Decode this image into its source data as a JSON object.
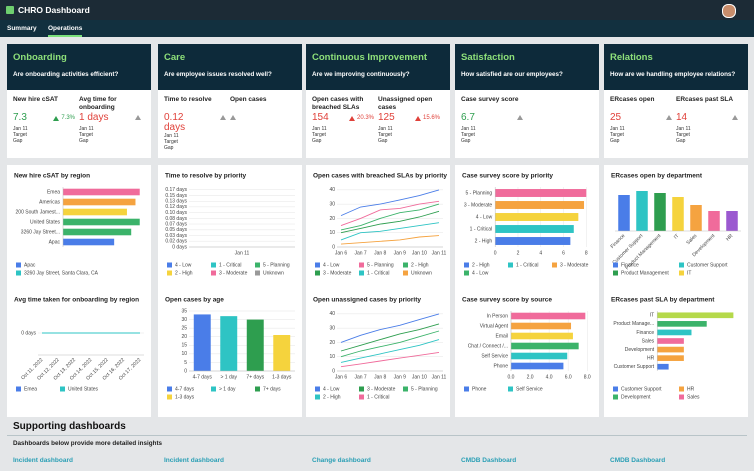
{
  "header": {
    "title": "CHRO Dashboard"
  },
  "tabs": [
    "Summary",
    "Operations"
  ],
  "sections": [
    {
      "title": "Onboarding",
      "question": "Are onboarding activities efficient?",
      "kpis": [
        {
          "label": "New hire cSAT",
          "value": "7.3",
          "color": "#2e9e4f",
          "change": "7.3%",
          "date": "Jan 11",
          "target": "Target",
          "gap": "Gap"
        },
        {
          "label": "Avg time for onboarding",
          "value": "1 days",
          "color": "#e0413a",
          "date": "Jan 11",
          "target": "Target",
          "gap": "Gap"
        }
      ],
      "charts": [
        {
          "type": "bar",
          "orientation": "horizontal",
          "title": "New hire cSAT by region",
          "categories": [
            "Emea",
            "Americas",
            "200 South Jamest...",
            "United States",
            "3260 Jay Street...",
            "Apac"
          ],
          "values": [
            9,
            8.5,
            7.5,
            9,
            8,
            6
          ],
          "xlim": [
            0,
            9.5
          ],
          "colors": [
            "#f06b9b",
            "#f5a340",
            "#f5d33d",
            "#3bb36a",
            "#3bb36a",
            "#4a7de8"
          ],
          "legend": [
            {
              "name": "Apac",
              "color": "#4a7de8"
            },
            {
              "name": "3260 Jay Street, Santa Clara, CA",
              "color": "#2ec4c4"
            }
          ]
        },
        {
          "type": "line",
          "title": "Avg time taken for onboarding by region",
          "categories": [
            "Oct 11, 2022",
            "Oct 12, 2022",
            "Oct 13, 2022",
            "Oct 14, 2022",
            "Oct 15, 2022",
            "Oct 16, 2022",
            "Oct 17, 2022"
          ],
          "ylim": [
            -1,
            1
          ],
          "yticks": [
            {
              "value": 0,
              "label": "0 days"
            }
          ],
          "series": [
            {
              "name": "Emea",
              "color": "#4a7de8",
              "values": [
                0,
                0,
                0,
                0,
                0,
                0,
                0
              ]
            },
            {
              "name": "United States",
              "color": "#2ec4c4",
              "values": [
                0,
                0,
                0,
                0,
                0,
                0,
                0
              ]
            }
          ]
        }
      ]
    },
    {
      "title": "Care",
      "question": "Are employee issues resolved well?",
      "kpis": [
        {
          "label": "Time to resolve",
          "value": "0.12 days",
          "color": "#e0413a",
          "date": "Jan 11",
          "target": "Target",
          "gap": "Gap"
        },
        {
          "label": "Open cases"
        }
      ],
      "charts": [
        {
          "type": "line",
          "title": "Time to resolve by priority",
          "categories": [
            "Jan 11"
          ],
          "ylim": [
            0,
            0.175
          ],
          "yticks": [
            {
              "value": 0,
              "label": "0 days"
            },
            {
              "value": 0.017,
              "label": "0.02 days"
            },
            {
              "value": 0.033,
              "label": "0.03 days"
            },
            {
              "value": 0.05,
              "label": "0.05 days"
            },
            {
              "value": 0.067,
              "label": "0.07 days"
            },
            {
              "value": 0.083,
              "label": "0.08 days"
            },
            {
              "value": 0.1,
              "label": "0.10 days"
            },
            {
              "value": 0.117,
              "label": "0.12 days"
            },
            {
              "value": 0.133,
              "label": "0.13 days"
            },
            {
              "value": 0.15,
              "label": "0.15 days"
            },
            {
              "value": 0.167,
              "label": "0.17 days"
            }
          ],
          "series": [
            {
              "name": "4 - Low",
              "color": "#4a7de8",
              "values": [
                null
              ]
            },
            {
              "name": "1 - Critical",
              "color": "#2ec4c4",
              "values": [
                null
              ]
            },
            {
              "name": "5 - Planning",
              "color": "#3bb36a",
              "values": [
                null
              ]
            },
            {
              "name": "2 - High",
              "color": "#f5d33d",
              "values": [
                null
              ]
            },
            {
              "name": "3 - Moderate",
              "color": "#f06b9b",
              "values": [
                null
              ]
            },
            {
              "name": "Unknown",
              "color": "#999999",
              "values": [
                null
              ]
            }
          ]
        },
        {
          "type": "bar",
          "title": "Open cases by age",
          "categories": [
            "4-7 days",
            "> 1 day",
            "7+ days",
            "1-3 days"
          ],
          "values": [
            33,
            32,
            30,
            21
          ],
          "ylim": [
            0,
            35
          ],
          "yticks": [
            0,
            5,
            10,
            15,
            20,
            25,
            30,
            35
          ],
          "colors": [
            "#4a7de8",
            "#2ec4c4",
            "#2e9e4f",
            "#f5d33d"
          ],
          "legend": [
            {
              "name": "4-7 days",
              "color": "#4a7de8"
            },
            {
              "name": "> 1 day",
              "color": "#2ec4c4"
            },
            {
              "name": "7+ days",
              "color": "#2e9e4f"
            },
            {
              "name": "1-3 days",
              "color": "#f5d33d"
            }
          ]
        }
      ]
    },
    {
      "title": "Continuous Improvement",
      "question": "Are we improving continuously?",
      "kpis": [
        {
          "label": "Open cases with breached SLAs",
          "value": "154",
          "color": "#e0413a",
          "change": "20.3%",
          "date": "Jan 11",
          "target": "Target",
          "gap": "Gap"
        },
        {
          "label": "Unassigned open cases",
          "value": "125",
          "color": "#e0413a",
          "change": "15.6%",
          "date": "Jan 11",
          "target": "Target",
          "gap": "Gap"
        }
      ],
      "charts": [
        {
          "type": "line",
          "title": "Open cases with breached SLAs by priority",
          "categories": [
            "Jan 6",
            "Jan 7",
            "Jan 8",
            "Jan 9",
            "Jan 10",
            "Jan 11"
          ],
          "ylim": [
            0,
            42
          ],
          "yticks": [
            0,
            10,
            20,
            30,
            40
          ],
          "series": [
            {
              "name": "4 - Low",
              "color": "#4a7de8",
              "values": [
                22,
                28,
                30,
                33,
                36,
                40
              ]
            },
            {
              "name": "5 - Planning",
              "color": "#f06b9b",
              "values": [
                15,
                20,
                26,
                27,
                30,
                32
              ]
            },
            {
              "name": "2 - High",
              "color": "#3bb36a",
              "values": [
                12,
                15,
                20,
                24,
                26,
                30
              ]
            },
            {
              "name": "3 - Moderate",
              "color": "#2e9e4f",
              "values": [
                10,
                13,
                16,
                18,
                21,
                25
              ]
            },
            {
              "name": "1 - Critical",
              "color": "#2ec4c4",
              "values": [
                5,
                10,
                11,
                13,
                15,
                17
              ]
            },
            {
              "name": "Unknown",
              "color": "#f5a340",
              "values": [
                2,
                3,
                4,
                5,
                7,
                8
              ]
            }
          ]
        },
        {
          "type": "line",
          "title": "Open unassigned cases by priority",
          "categories": [
            "Jan 6",
            "Jan 7",
            "Jan 8",
            "Jan 9",
            "Jan 10",
            "Jan 11"
          ],
          "ylim": [
            0,
            42
          ],
          "yticks": [
            0,
            10,
            20,
            30,
            40
          ],
          "series": [
            {
              "name": "4 - Low",
              "color": "#4a7de8",
              "values": [
                20,
                25,
                29,
                32,
                36,
                40
              ]
            },
            {
              "name": "3 - Moderate",
              "color": "#2e9e4f",
              "values": [
                14,
                18,
                22,
                26,
                29,
                33
              ]
            },
            {
              "name": "5 - Planning",
              "color": "#3bb36a",
              "values": [
                10,
                14,
                17,
                20,
                24,
                28
              ]
            },
            {
              "name": "2 - High",
              "color": "#2ec4c4",
              "values": [
                6,
                9,
                12,
                15,
                18,
                22
              ]
            },
            {
              "name": "1 - Critical",
              "color": "#f06b9b",
              "values": [
                3,
                5,
                7,
                9,
                11,
                13
              ]
            }
          ]
        }
      ]
    },
    {
      "title": "Satisfaction",
      "question": "How satisfied are our employees?",
      "kpis": [
        {
          "label": "Case survey score",
          "value": "6.7",
          "color": "#2e9e4f",
          "date": "Jan 11",
          "target": "Target",
          "gap": "Gap"
        }
      ],
      "charts": [
        {
          "type": "bar",
          "orientation": "horizontal",
          "title": "Case survey score by priority",
          "categories": [
            "5 - Planning",
            "3 - Moderate",
            "4 - Low",
            "1 - Critical",
            "2 - High"
          ],
          "values": [
            8,
            7.8,
            7.3,
            6.9,
            6.6
          ],
          "xlim": [
            0,
            8.5
          ],
          "xticks": [
            0,
            2,
            4,
            6,
            8
          ],
          "colors": [
            "#f06b9b",
            "#f5a340",
            "#f5d33d",
            "#2ec4c4",
            "#4a7de8"
          ],
          "legend": [
            {
              "name": "2 - High",
              "color": "#4a7de8"
            },
            {
              "name": "1 - Critical",
              "color": "#2ec4c4"
            },
            {
              "name": "3 - Moderate",
              "color": "#f5a340"
            },
            {
              "name": "4 - Low",
              "color": "#3bb36a"
            }
          ]
        },
        {
          "type": "bar",
          "orientation": "horizontal",
          "title": "Case survey score by source",
          "categories": [
            "In Person",
            "Virtual Agent",
            "Email",
            "Chat / Connect /...",
            "Self Service",
            "Phone"
          ],
          "values": [
            7.8,
            6.3,
            6.5,
            7.1,
            5.9,
            5.5
          ],
          "xlim": [
            0,
            8.5
          ],
          "xticks": [
            {
              "value": 0,
              "label": "0.0"
            },
            {
              "value": 2,
              "label": "2.0"
            },
            {
              "value": 4,
              "label": "4.0"
            },
            {
              "value": 6,
              "label": "6.0"
            },
            {
              "value": 8,
              "label": "8.0"
            }
          ],
          "colors": [
            "#f06b9b",
            "#f5a340",
            "#f5d33d",
            "#3bb36a",
            "#2ec4c4",
            "#4a7de8"
          ],
          "legend": [
            {
              "name": "Phone",
              "color": "#4a7de8"
            },
            {
              "name": "Self Service",
              "color": "#2ec4c4"
            }
          ]
        }
      ]
    },
    {
      "title": "Relations",
      "question": "How are we handling employee relations?",
      "kpis": [
        {
          "label": "ERcases open",
          "value": "25",
          "color": "#e0413a",
          "date": "Jan 11",
          "target": "Target",
          "gap": "Gap"
        },
        {
          "label": "ERcases past SLA",
          "value": "14",
          "color": "#e0413a",
          "date": "Jan 11",
          "target": "Target",
          "gap": "Gap"
        }
      ],
      "charts": [
        {
          "type": "bar",
          "title": "ERcases open by department",
          "categories": [
            "Finance",
            "Customer Support",
            "Product Management",
            "IT",
            "Sales",
            "Development",
            "HR"
          ],
          "values": [
            9,
            10,
            9.5,
            8.5,
            6.5,
            5,
            5
          ],
          "ylim": [
            0,
            11
          ],
          "colors": [
            "#4a7de8",
            "#2ec4c4",
            "#2e9e4f",
            "#f5d33d",
            "#f5a340",
            "#f06b9b",
            "#9b59d0"
          ],
          "legend": [
            {
              "name": "Finance",
              "color": "#4a7de8"
            },
            {
              "name": "Customer Support",
              "color": "#2ec4c4"
            },
            {
              "name": "Product Management",
              "color": "#2e9e4f"
            },
            {
              "name": "IT",
              "color": "#f5d33d"
            }
          ]
        },
        {
          "type": "bar",
          "orientation": "horizontal",
          "title": "ERcases past SLA by department",
          "categories": [
            "IT",
            "Product Manage...",
            "Finance",
            "Sales",
            "Development",
            "HR",
            "Customer Support"
          ],
          "values": [
            10,
            6.5,
            4.5,
            3.5,
            3.5,
            3.5,
            1.5
          ],
          "xlim": [
            0,
            11
          ],
          "colors": [
            "#b5d94a",
            "#3bb36a",
            "#2ec4c4",
            "#f06b9b",
            "#f5a340",
            "#f5a340",
            "#4a7de8"
          ],
          "legend": [
            {
              "name": "Customer Support",
              "color": "#4a7de8"
            },
            {
              "name": "HR",
              "color": "#f5a340"
            },
            {
              "name": "Development",
              "color": "#3bb36a"
            },
            {
              "name": "Sales",
              "color": "#f06b9b"
            }
          ]
        }
      ]
    }
  ],
  "supporting": {
    "title": "Supporting dashboards",
    "subtitle": "Dashboards below provide more detailed insights",
    "links": [
      "Incident dashboard",
      "Incident dashboard",
      "Change dashboard",
      "CMDB Dashboard",
      "CMDB Dashboard"
    ]
  }
}
